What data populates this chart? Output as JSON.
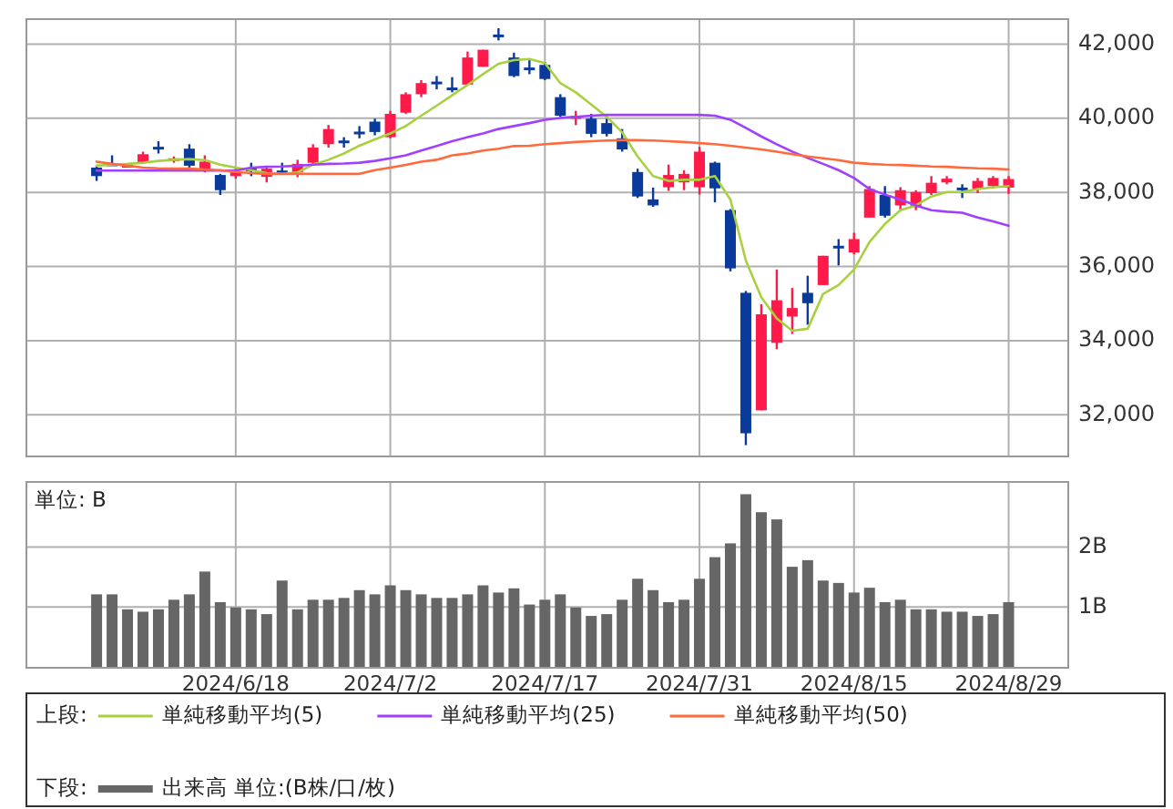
{
  "chart_data": [
    {
      "type": "candlestick",
      "categories": [
        null,
        null,
        null,
        null,
        null,
        null,
        null,
        null,
        null,
        "2024/6/18",
        null,
        null,
        null,
        null,
        null,
        null,
        null,
        null,
        null,
        "2024/7/2",
        null,
        null,
        null,
        null,
        null,
        null,
        null,
        null,
        null,
        "2024/7/17",
        null,
        null,
        null,
        null,
        null,
        null,
        null,
        null,
        null,
        "2024/7/31",
        null,
        null,
        null,
        null,
        null,
        null,
        null,
        null,
        null,
        "2024/8/15",
        null,
        null,
        null,
        null,
        null,
        null,
        null,
        null,
        null,
        "2024/8/29"
      ],
      "ohlc": [
        [
          38670,
          38720,
          38310,
          38440
        ],
        [
          38780,
          39000,
          38720,
          38750
        ],
        [
          38700,
          38750,
          38670,
          38740
        ],
        [
          38800,
          39100,
          38770,
          39030
        ],
        [
          39230,
          39380,
          39050,
          39200
        ],
        [
          38850,
          38970,
          38800,
          38920
        ],
        [
          39180,
          39300,
          38670,
          38720
        ],
        [
          38600,
          39000,
          38540,
          38830
        ],
        [
          38470,
          38500,
          37930,
          38060
        ],
        [
          38440,
          38640,
          38370,
          38540
        ],
        [
          38670,
          38800,
          38440,
          38570
        ],
        [
          38420,
          38720,
          38270,
          38640
        ],
        [
          38590,
          38800,
          38500,
          38540
        ],
        [
          38540,
          38880,
          38410,
          38770
        ],
        [
          38800,
          39300,
          38770,
          39210
        ],
        [
          39300,
          39820,
          39210,
          39710
        ],
        [
          39400,
          39490,
          39210,
          39360
        ],
        [
          39640,
          39790,
          39460,
          39610
        ],
        [
          39910,
          39990,
          39540,
          39630
        ],
        [
          39490,
          40200,
          39460,
          40120
        ],
        [
          40150,
          40700,
          40120,
          40650
        ],
        [
          40650,
          41030,
          40570,
          40950
        ],
        [
          40990,
          41140,
          40780,
          40960
        ],
        [
          40830,
          41110,
          40700,
          40800
        ],
        [
          40910,
          41800,
          40910,
          41640
        ],
        [
          41390,
          41850,
          41390,
          41850
        ],
        [
          42260,
          42430,
          42100,
          42230
        ],
        [
          41640,
          41770,
          41110,
          41140
        ],
        [
          41370,
          41600,
          41190,
          41340
        ],
        [
          41440,
          41520,
          41030,
          41060
        ],
        [
          40570,
          40650,
          40040,
          40070
        ],
        [
          40020,
          40200,
          39820,
          40060
        ],
        [
          39990,
          40120,
          39490,
          39580
        ],
        [
          39870,
          39990,
          39510,
          39580
        ],
        [
          39460,
          39710,
          39100,
          39160
        ],
        [
          38550,
          38640,
          37850,
          37890
        ],
        [
          37810,
          38130,
          37610,
          37650
        ],
        [
          38140,
          38750,
          38040,
          38470
        ],
        [
          38270,
          38600,
          38060,
          38500
        ],
        [
          38140,
          39230,
          37940,
          39100
        ],
        [
          38800,
          38830,
          37730,
          38110
        ],
        [
          37520,
          37550,
          35870,
          35950
        ],
        [
          35290,
          35340,
          31180,
          31500
        ],
        [
          32120,
          34980,
          32120,
          34710
        ],
        [
          33940,
          35920,
          33770,
          35090
        ],
        [
          34650,
          35420,
          34180,
          34880
        ],
        [
          35290,
          35750,
          34430,
          35010
        ],
        [
          35500,
          36290,
          35500,
          36290
        ],
        [
          36560,
          36740,
          36030,
          36490
        ],
        [
          36380,
          36910,
          36330,
          36740
        ],
        [
          37320,
          38170,
          37320,
          38090
        ],
        [
          37930,
          38170,
          37320,
          37370
        ],
        [
          37650,
          38140,
          37520,
          38060
        ],
        [
          37600,
          38060,
          37520,
          38010
        ],
        [
          37980,
          38440,
          37930,
          38260
        ],
        [
          38270,
          38440,
          38220,
          38370
        ],
        [
          38130,
          38220,
          37850,
          38060
        ],
        [
          38090,
          38390,
          37980,
          38310
        ],
        [
          38170,
          38440,
          38110,
          38390
        ],
        [
          38130,
          38440,
          37960,
          38360
        ]
      ],
      "colors": [
        "#0a3a9a",
        "#0a3a9a",
        "#ff1a4a",
        "#ff1a4a",
        "#0a3a9a",
        "#ff1a4a",
        "#0a3a9a",
        "#ff1a4a",
        "#0a3a9a",
        "#ff1a4a",
        "#0a3a9a",
        "#ff1a4a",
        "#0a3a9a",
        "#ff1a4a",
        "#ff1a4a",
        "#ff1a4a",
        "#0a3a9a",
        "#0a3a9a",
        "#0a3a9a",
        "#ff1a4a",
        "#ff1a4a",
        "#ff1a4a",
        "#0a3a9a",
        "#0a3a9a",
        "#ff1a4a",
        "#ff1a4a",
        "#0a3a9a",
        "#0a3a9a",
        "#0a3a9a",
        "#0a3a9a",
        "#0a3a9a",
        "#ff1a4a",
        "#0a3a9a",
        "#0a3a9a",
        "#0a3a9a",
        "#0a3a9a",
        "#0a3a9a",
        "#ff1a4a",
        "#ff1a4a",
        "#ff1a4a",
        "#0a3a9a",
        "#0a3a9a",
        "#0a3a9a",
        "#ff1a4a",
        "#ff1a4a",
        "#ff1a4a",
        "#0a3a9a",
        "#ff1a4a",
        "#0a3a9a",
        "#ff1a4a",
        "#ff1a4a",
        "#0a3a9a",
        "#ff1a4a",
        "#ff1a4a",
        "#ff1a4a",
        "#ff1a4a",
        "#0a3a9a",
        "#ff1a4a",
        "#ff1a4a",
        "#ff1a4a"
      ],
      "series": [
        {
          "type": "line",
          "name": "単純移動平均(5)",
          "color": "#a8d040",
          "values": [
            38720,
            38750,
            38770,
            38800,
            38850,
            38880,
            38900,
            38870,
            38750,
            38670,
            38600,
            38520,
            38500,
            38540,
            38750,
            38880,
            39050,
            39260,
            39430,
            39590,
            39790,
            40070,
            40340,
            40620,
            40900,
            41190,
            41470,
            41570,
            41600,
            41490,
            40950,
            40700,
            40370,
            40040,
            39620,
            38970,
            38440,
            38310,
            38340,
            38340,
            38440,
            37810,
            36160,
            35170,
            34600,
            34270,
            34320,
            35260,
            35500,
            35920,
            36660,
            37150,
            37520,
            37650,
            37890,
            38010,
            38010,
            38090,
            38140,
            38170
          ]
        },
        {
          "type": "line",
          "name": "単純移動平均(25)",
          "color": "#a040ff",
          "values": [
            38590,
            38590,
            38590,
            38590,
            38590,
            38590,
            38590,
            38590,
            38590,
            38590,
            38670,
            38690,
            38700,
            38720,
            38750,
            38770,
            38780,
            38800,
            38850,
            38920,
            39000,
            39130,
            39250,
            39380,
            39490,
            39590,
            39710,
            39790,
            39870,
            39960,
            40010,
            40040,
            40070,
            40090,
            40090,
            40090,
            40090,
            40090,
            40090,
            40090,
            40070,
            39960,
            39740,
            39510,
            39300,
            39100,
            38930,
            38770,
            38600,
            38390,
            38090,
            37940,
            37810,
            37650,
            37520,
            37480,
            37450,
            37320,
            37220,
            37100
          ]
        },
        {
          "type": "line",
          "name": "単純移動平均(50)",
          "color": "#ff6a3d",
          "values": [
            38830,
            38770,
            38720,
            38670,
            38650,
            38640,
            38640,
            38620,
            38600,
            38550,
            38520,
            38500,
            38500,
            38500,
            38500,
            38500,
            38500,
            38500,
            38600,
            38670,
            38740,
            38830,
            38880,
            39000,
            39050,
            39130,
            39180,
            39250,
            39260,
            39300,
            39330,
            39360,
            39380,
            39400,
            39410,
            39410,
            39400,
            39380,
            39360,
            39330,
            39300,
            39260,
            39210,
            39160,
            39100,
            39030,
            38970,
            38920,
            38870,
            38800,
            38770,
            38750,
            38740,
            38720,
            38700,
            38690,
            38670,
            38650,
            38640,
            38620
          ]
        }
      ],
      "ylim": [
        30900,
        42700
      ],
      "yticks": [
        {
          "value": 32000,
          "label": "32,000"
        },
        {
          "value": 34000,
          "label": "34,000"
        },
        {
          "value": 36000,
          "label": "36,000"
        },
        {
          "value": 38000,
          "label": "38,000"
        },
        {
          "value": 40000,
          "label": "40,000"
        },
        {
          "value": 42000,
          "label": "42,000"
        }
      ],
      "grid": true,
      "tick_labels": "y",
      "legend": "bottom",
      "annotations": [
        "上段:"
      ]
    },
    {
      "type": "bar",
      "categories": [
        null,
        null,
        null,
        null,
        null,
        null,
        null,
        null,
        null,
        "2024/6/18",
        null,
        null,
        null,
        null,
        null,
        null,
        null,
        null,
        null,
        "2024/7/2",
        null,
        null,
        null,
        null,
        null,
        null,
        null,
        null,
        null,
        "2024/7/17",
        null,
        null,
        null,
        null,
        null,
        null,
        null,
        null,
        null,
        "2024/7/31",
        null,
        null,
        null,
        null,
        null,
        null,
        null,
        null,
        null,
        "2024/8/15",
        null,
        null,
        null,
        null,
        null,
        null,
        null,
        null,
        null,
        "2024/8/29"
      ],
      "series": [
        {
          "type": "bar",
          "name": "出来高 単位:(B株/口/枚)",
          "color": "#666666",
          "values": [
            1.21,
            1.21,
            0.96,
            0.92,
            0.96,
            1.12,
            1.21,
            1.59,
            1.08,
            0.99,
            0.96,
            0.88,
            1.44,
            0.96,
            1.12,
            1.12,
            1.15,
            1.28,
            1.21,
            1.36,
            1.28,
            1.21,
            1.15,
            1.15,
            1.21,
            1.36,
            1.24,
            1.31,
            1.04,
            1.12,
            1.21,
            0.99,
            0.85,
            0.88,
            1.12,
            1.47,
            1.28,
            1.08,
            1.12,
            1.47,
            1.83,
            2.06,
            2.88,
            2.58,
            2.46,
            1.67,
            1.78,
            1.44,
            1.4,
            1.24,
            1.32,
            1.08,
            1.12,
            0.96,
            0.96,
            0.92,
            0.92,
            0.85,
            0.88,
            1.08
          ]
        }
      ],
      "ylim": [
        0,
        3.1
      ],
      "yticks": [
        {
          "value": 1,
          "label": "1B"
        },
        {
          "value": 2,
          "label": "2B"
        }
      ],
      "grid": true,
      "legend": "bottom",
      "annotations": [
        "単位: B",
        "下段:"
      ]
    }
  ]
}
